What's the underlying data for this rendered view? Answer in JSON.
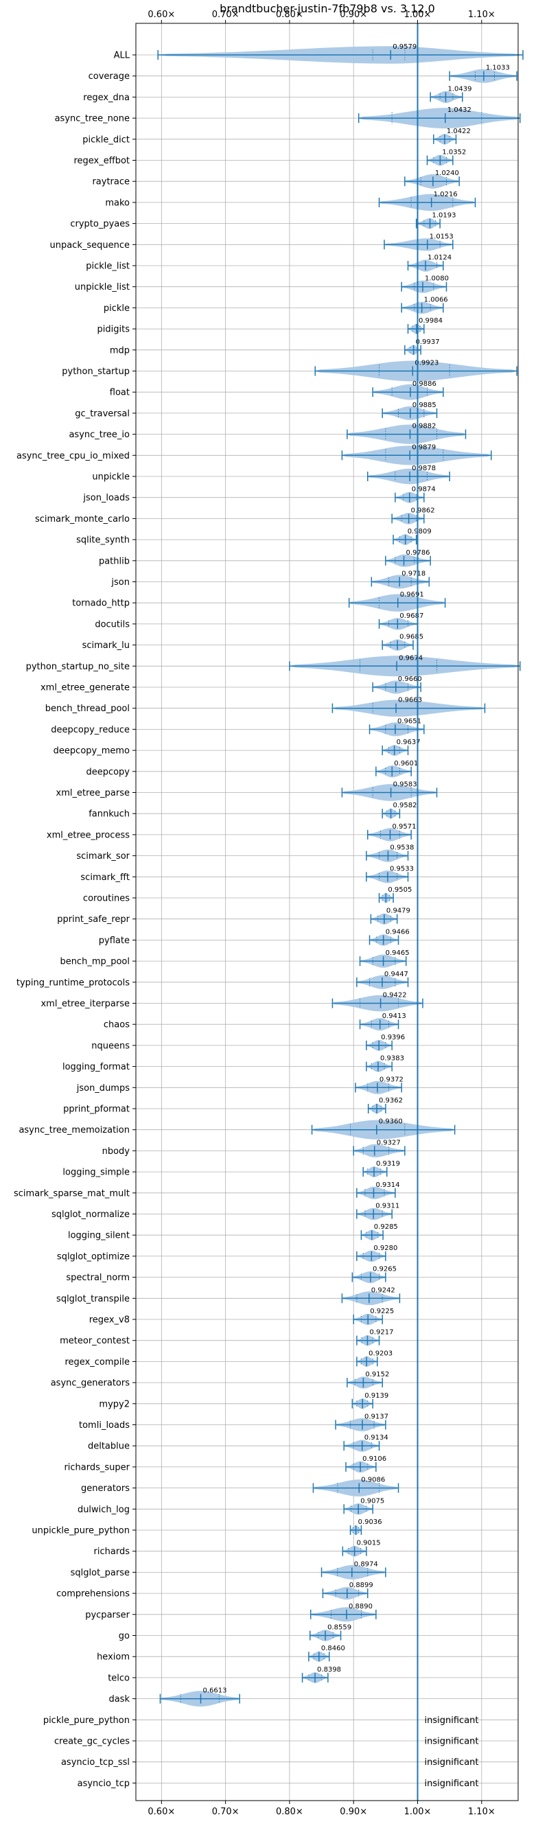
{
  "chart_data": {
    "type": "violin",
    "title": "brandtbucher-justin-7fb79b8 vs. 3.12.0",
    "xlabel": "",
    "ylabel": "",
    "xlim": [
      0.56,
      1.157
    ],
    "x_ticks": [
      0.6,
      0.7,
      0.8,
      0.9,
      1.0,
      1.1
    ],
    "x_tick_labels": [
      "0.60×",
      "0.70×",
      "0.80×",
      "0.90×",
      "1.00×",
      "1.10×"
    ],
    "reference_line": 1.0,
    "grid": true,
    "colors": {
      "violin": "#a9c8e6",
      "line": "#1f77b4",
      "grid": "#b0b0b0"
    },
    "insignificant_label": "insignificant",
    "benchmarks": [
      {
        "name": "ALL",
        "value": 0.9579,
        "label": "0.9579",
        "min": 0.5945,
        "max": 1.1645,
        "q1": 0.93,
        "q3": 0.98,
        "width": 0.075
      },
      {
        "name": "coverage",
        "value": 1.1033,
        "label": "1.1033",
        "min": 1.05,
        "max": 1.155,
        "q1": 1.09,
        "q3": 1.12,
        "width": 0.045
      },
      {
        "name": "regex_dna",
        "value": 1.0439,
        "label": "1.0439",
        "min": 1.02,
        "max": 1.07,
        "q1": 1.035,
        "q3": 1.055,
        "width": 0.03
      },
      {
        "name": "async_tree_none",
        "value": 1.0432,
        "label": "1.0432",
        "min": 0.908,
        "max": 1.16,
        "q1": 0.96,
        "q3": 1.1,
        "width": 0.105
      },
      {
        "name": "pickle_dict",
        "value": 1.0422,
        "label": "1.0422",
        "min": 1.025,
        "max": 1.06,
        "q1": 1.035,
        "q3": 1.05,
        "width": 0.02
      },
      {
        "name": "regex_effbot",
        "value": 1.0352,
        "label": "1.0352",
        "min": 1.015,
        "max": 1.055,
        "q1": 1.025,
        "q3": 1.045,
        "width": 0.02
      },
      {
        "name": "raytrace",
        "value": 1.024,
        "label": "1.0240",
        "min": 0.98,
        "max": 1.065,
        "q1": 1.005,
        "q3": 1.045,
        "width": 0.05
      },
      {
        "name": "mako",
        "value": 1.0216,
        "label": "1.0216",
        "min": 0.94,
        "max": 1.09,
        "q1": 0.99,
        "q3": 1.055,
        "width": 0.07
      },
      {
        "name": "crypto_pyaes",
        "value": 1.0193,
        "label": "1.0193",
        "min": 0.998,
        "max": 1.035,
        "q1": 1.01,
        "q3": 1.028,
        "width": 0.02
      },
      {
        "name": "unpack_sequence",
        "value": 1.0153,
        "label": "1.0153",
        "min": 0.948,
        "max": 1.055,
        "q1": 1.0,
        "q3": 1.035,
        "width": 0.035
      },
      {
        "name": "pickle_list",
        "value": 1.0124,
        "label": "1.0124",
        "min": 0.985,
        "max": 1.04,
        "q1": 1.0,
        "q3": 1.03,
        "width": 0.03
      },
      {
        "name": "unpickle_list",
        "value": 1.008,
        "label": "1.0080",
        "min": 0.975,
        "max": 1.045,
        "q1": 0.995,
        "q3": 1.025,
        "width": 0.035
      },
      {
        "name": "pickle",
        "value": 1.0066,
        "label": "1.0066",
        "min": 0.975,
        "max": 1.04,
        "q1": 0.995,
        "q3": 1.02,
        "width": 0.03
      },
      {
        "name": "pidigits",
        "value": 0.9984,
        "label": "0.9984",
        "min": 0.985,
        "max": 1.01,
        "q1": 0.992,
        "q3": 1.004,
        "width": 0.016
      },
      {
        "name": "mdp",
        "value": 0.9937,
        "label": "0.9937",
        "min": 0.98,
        "max": 1.005,
        "q1": 0.988,
        "q3": 1.0,
        "width": 0.014
      },
      {
        "name": "python_startup",
        "value": 0.9923,
        "label": "0.9923",
        "min": 0.84,
        "max": 1.155,
        "q1": 0.94,
        "q3": 1.05,
        "width": 0.11
      },
      {
        "name": "float",
        "value": 0.9886,
        "label": "0.9886",
        "min": 0.93,
        "max": 1.04,
        "q1": 0.96,
        "q3": 1.015,
        "width": 0.06
      },
      {
        "name": "gc_traversal",
        "value": 0.9885,
        "label": "0.9885",
        "min": 0.945,
        "max": 1.03,
        "q1": 0.97,
        "q3": 1.01,
        "width": 0.045
      },
      {
        "name": "async_tree_io",
        "value": 0.9882,
        "label": "0.9882",
        "min": 0.89,
        "max": 1.075,
        "q1": 0.95,
        "q3": 1.03,
        "width": 0.09
      },
      {
        "name": "async_tree_cpu_io_mixed",
        "value": 0.9879,
        "label": "0.9879",
        "min": 0.882,
        "max": 1.115,
        "q1": 0.95,
        "q3": 1.04,
        "width": 0.09
      },
      {
        "name": "unpickle",
        "value": 0.9878,
        "label": "0.9878",
        "min": 0.922,
        "max": 1.05,
        "q1": 0.965,
        "q3": 1.015,
        "width": 0.06
      },
      {
        "name": "json_loads",
        "value": 0.9874,
        "label": "0.9874",
        "min": 0.965,
        "max": 1.01,
        "q1": 0.978,
        "q3": 0.998,
        "width": 0.022
      },
      {
        "name": "scimark_monte_carlo",
        "value": 0.9862,
        "label": "0.9862",
        "min": 0.96,
        "max": 1.01,
        "q1": 0.975,
        "q3": 0.998,
        "width": 0.025
      },
      {
        "name": "sqlite_synth",
        "value": 0.9809,
        "label": "0.9809",
        "min": 0.962,
        "max": 0.998,
        "q1": 0.972,
        "q3": 0.99,
        "width": 0.02
      },
      {
        "name": "pathlib",
        "value": 0.9786,
        "label": "0.9786",
        "min": 0.95,
        "max": 1.02,
        "q1": 0.965,
        "q3": 0.995,
        "width": 0.035
      },
      {
        "name": "json",
        "value": 0.9718,
        "label": "0.9718",
        "min": 0.928,
        "max": 1.018,
        "q1": 0.955,
        "q3": 0.99,
        "width": 0.045
      },
      {
        "name": "tornado_http",
        "value": 0.9691,
        "label": "0.9691",
        "min": 0.893,
        "max": 1.043,
        "q1": 0.94,
        "q3": 1.0,
        "width": 0.075
      },
      {
        "name": "docutils",
        "value": 0.9687,
        "label": "0.9687",
        "min": 0.94,
        "max": 1.0,
        "q1": 0.955,
        "q3": 0.985,
        "width": 0.03
      },
      {
        "name": "scimark_lu",
        "value": 0.9685,
        "label": "0.9685",
        "min": 0.945,
        "max": 0.993,
        "q1": 0.958,
        "q3": 0.98,
        "width": 0.025
      },
      {
        "name": "python_startup_no_site",
        "value": 0.9674,
        "label": "0.9674",
        "min": 0.8,
        "max": 1.16,
        "q1": 0.91,
        "q3": 1.03,
        "width": 0.12
      },
      {
        "name": "xml_etree_generate",
        "value": 0.966,
        "label": "0.9660",
        "min": 0.93,
        "max": 1.005,
        "q1": 0.95,
        "q3": 0.985,
        "width": 0.04
      },
      {
        "name": "bench_thread_pool",
        "value": 0.9663,
        "label": "0.9663",
        "min": 0.867,
        "max": 1.105,
        "q1": 0.93,
        "q3": 1.0,
        "width": 0.07
      },
      {
        "name": "deepcopy_reduce",
        "value": 0.9651,
        "label": "0.9651",
        "min": 0.925,
        "max": 1.01,
        "q1": 0.95,
        "q3": 0.985,
        "width": 0.045
      },
      {
        "name": "deepcopy_memo",
        "value": 0.9637,
        "label": "0.9637",
        "min": 0.945,
        "max": 0.985,
        "q1": 0.955,
        "q3": 0.972,
        "width": 0.02
      },
      {
        "name": "deepcopy",
        "value": 0.9601,
        "label": "0.9601",
        "min": 0.935,
        "max": 0.99,
        "q1": 0.95,
        "q3": 0.972,
        "width": 0.03
      },
      {
        "name": "xml_etree_parse",
        "value": 0.9583,
        "label": "0.9583",
        "min": 0.882,
        "max": 1.03,
        "q1": 0.93,
        "q3": 0.99,
        "width": 0.07
      },
      {
        "name": "fannkuch",
        "value": 0.9582,
        "label": "0.9582",
        "min": 0.945,
        "max": 0.972,
        "q1": 0.952,
        "q3": 0.965,
        "width": 0.015
      },
      {
        "name": "xml_etree_process",
        "value": 0.9571,
        "label": "0.9571",
        "min": 0.922,
        "max": 0.99,
        "q1": 0.942,
        "q3": 0.972,
        "width": 0.04
      },
      {
        "name": "scimark_sor",
        "value": 0.9538,
        "label": "0.9538",
        "min": 0.92,
        "max": 0.985,
        "q1": 0.94,
        "q3": 0.968,
        "width": 0.035
      },
      {
        "name": "scimark_fft",
        "value": 0.9533,
        "label": "0.9533",
        "min": 0.92,
        "max": 0.985,
        "q1": 0.94,
        "q3": 0.968,
        "width": 0.035
      },
      {
        "name": "coroutines",
        "value": 0.9505,
        "label": "0.9505",
        "min": 0.94,
        "max": 0.962,
        "q1": 0.945,
        "q3": 0.956,
        "width": 0.012
      },
      {
        "name": "pprint_safe_repr",
        "value": 0.9479,
        "label": "0.9479",
        "min": 0.927,
        "max": 0.968,
        "q1": 0.938,
        "q3": 0.958,
        "width": 0.022
      },
      {
        "name": "pyflate",
        "value": 0.9466,
        "label": "0.9466",
        "min": 0.925,
        "max": 0.97,
        "q1": 0.936,
        "q3": 0.958,
        "width": 0.025
      },
      {
        "name": "bench_mp_pool",
        "value": 0.9465,
        "label": "0.9465",
        "min": 0.91,
        "max": 0.982,
        "q1": 0.93,
        "q3": 0.965,
        "width": 0.04
      },
      {
        "name": "typing_runtime_protocols",
        "value": 0.9447,
        "label": "0.9447",
        "min": 0.905,
        "max": 0.985,
        "q1": 0.925,
        "q3": 0.965,
        "width": 0.045
      },
      {
        "name": "xml_etree_iterparse",
        "value": 0.9422,
        "label": "0.9422",
        "min": 0.867,
        "max": 1.008,
        "q1": 0.91,
        "q3": 0.97,
        "width": 0.065
      },
      {
        "name": "chaos",
        "value": 0.9413,
        "label": "0.9413",
        "min": 0.91,
        "max": 0.97,
        "q1": 0.928,
        "q3": 0.955,
        "width": 0.035
      },
      {
        "name": "nqueens",
        "value": 0.9396,
        "label": "0.9396",
        "min": 0.92,
        "max": 0.96,
        "q1": 0.93,
        "q3": 0.95,
        "width": 0.022
      },
      {
        "name": "logging_format",
        "value": 0.9383,
        "label": "0.9383",
        "min": 0.92,
        "max": 0.96,
        "q1": 0.928,
        "q3": 0.948,
        "width": 0.022
      },
      {
        "name": "json_dumps",
        "value": 0.9372,
        "label": "0.9372",
        "min": 0.903,
        "max": 0.975,
        "q1": 0.922,
        "q3": 0.955,
        "width": 0.04
      },
      {
        "name": "pprint_pformat",
        "value": 0.9362,
        "label": "0.9362",
        "min": 0.923,
        "max": 0.95,
        "q1": 0.93,
        "q3": 0.943,
        "width": 0.014
      },
      {
        "name": "async_tree_memoization",
        "value": 0.936,
        "label": "0.9360",
        "min": 0.835,
        "max": 1.058,
        "q1": 0.895,
        "q3": 0.98,
        "width": 0.09
      },
      {
        "name": "nbody",
        "value": 0.9327,
        "label": "0.9327",
        "min": 0.9,
        "max": 0.98,
        "q1": 0.915,
        "q3": 0.955,
        "width": 0.04
      },
      {
        "name": "logging_simple",
        "value": 0.9319,
        "label": "0.9319",
        "min": 0.915,
        "max": 0.952,
        "q1": 0.922,
        "q3": 0.942,
        "width": 0.02
      },
      {
        "name": "scimark_sparse_mat_mult",
        "value": 0.9314,
        "label": "0.9314",
        "min": 0.905,
        "max": 0.965,
        "q1": 0.918,
        "q3": 0.948,
        "width": 0.035
      },
      {
        "name": "sqlglot_normalize",
        "value": 0.9311,
        "label": "0.9311",
        "min": 0.905,
        "max": 0.96,
        "q1": 0.918,
        "q3": 0.945,
        "width": 0.03
      },
      {
        "name": "logging_silent",
        "value": 0.9285,
        "label": "0.9285",
        "min": 0.912,
        "max": 0.946,
        "q1": 0.92,
        "q3": 0.938,
        "width": 0.018
      },
      {
        "name": "sqlglot_optimize",
        "value": 0.928,
        "label": "0.9280",
        "min": 0.905,
        "max": 0.95,
        "q1": 0.915,
        "q3": 0.94,
        "width": 0.025
      },
      {
        "name": "spectral_norm",
        "value": 0.9265,
        "label": "0.9265",
        "min": 0.898,
        "max": 0.95,
        "q1": 0.912,
        "q3": 0.94,
        "width": 0.03
      },
      {
        "name": "sqlglot_transpile",
        "value": 0.9242,
        "label": "0.9242",
        "min": 0.882,
        "max": 0.972,
        "q1": 0.905,
        "q3": 0.945,
        "width": 0.045
      },
      {
        "name": "regex_v8",
        "value": 0.9225,
        "label": "0.9225",
        "min": 0.9,
        "max": 0.945,
        "q1": 0.912,
        "q3": 0.935,
        "width": 0.025
      },
      {
        "name": "meteor_contest",
        "value": 0.9217,
        "label": "0.9217",
        "min": 0.905,
        "max": 0.94,
        "q1": 0.913,
        "q3": 0.93,
        "width": 0.018
      },
      {
        "name": "regex_compile",
        "value": 0.9203,
        "label": "0.9203",
        "min": 0.905,
        "max": 0.937,
        "q1": 0.912,
        "q3": 0.93,
        "width": 0.017
      },
      {
        "name": "async_generators",
        "value": 0.9152,
        "label": "0.9152",
        "min": 0.89,
        "max": 0.945,
        "q1": 0.902,
        "q3": 0.93,
        "width": 0.03
      },
      {
        "name": "mypy2",
        "value": 0.9139,
        "label": "0.9139",
        "min": 0.898,
        "max": 0.93,
        "q1": 0.905,
        "q3": 0.922,
        "width": 0.017
      },
      {
        "name": "tomli_loads",
        "value": 0.9137,
        "label": "0.9137",
        "min": 0.872,
        "max": 0.95,
        "q1": 0.895,
        "q3": 0.932,
        "width": 0.04
      },
      {
        "name": "deltablue",
        "value": 0.9134,
        "label": "0.9134",
        "min": 0.885,
        "max": 0.94,
        "q1": 0.9,
        "q3": 0.928,
        "width": 0.03
      },
      {
        "name": "richards_super",
        "value": 0.9106,
        "label": "0.9106",
        "min": 0.888,
        "max": 0.935,
        "q1": 0.9,
        "q3": 0.922,
        "width": 0.025
      },
      {
        "name": "generators",
        "value": 0.9086,
        "label": "0.9086",
        "min": 0.837,
        "max": 0.97,
        "q1": 0.875,
        "q3": 0.94,
        "width": 0.07
      },
      {
        "name": "dulwich_log",
        "value": 0.9075,
        "label": "0.9075",
        "min": 0.885,
        "max": 0.93,
        "q1": 0.896,
        "q3": 0.92,
        "width": 0.025
      },
      {
        "name": "unpickle_pure_python",
        "value": 0.9036,
        "label": "0.9036",
        "min": 0.895,
        "max": 0.912,
        "q1": 0.899,
        "q3": 0.908,
        "width": 0.01
      },
      {
        "name": "richards",
        "value": 0.9015,
        "label": "0.9015",
        "min": 0.883,
        "max": 0.92,
        "q1": 0.892,
        "q3": 0.911,
        "width": 0.02
      },
      {
        "name": "sqlglot_parse",
        "value": 0.8974,
        "label": "0.8974",
        "min": 0.85,
        "max": 0.95,
        "q1": 0.875,
        "q3": 0.922,
        "width": 0.05
      },
      {
        "name": "comprehensions",
        "value": 0.8899,
        "label": "0.8899",
        "min": 0.852,
        "max": 0.922,
        "q1": 0.872,
        "q3": 0.908,
        "width": 0.035
      },
      {
        "name": "pycparser",
        "value": 0.889,
        "label": "0.8890",
        "min": 0.833,
        "max": 0.935,
        "q1": 0.865,
        "q3": 0.912,
        "width": 0.05
      },
      {
        "name": "go",
        "value": 0.8559,
        "label": "0.8559",
        "min": 0.832,
        "max": 0.88,
        "q1": 0.845,
        "q3": 0.868,
        "width": 0.025
      },
      {
        "name": "hexiom",
        "value": 0.846,
        "label": "0.8460",
        "min": 0.83,
        "max": 0.862,
        "q1": 0.838,
        "q3": 0.854,
        "width": 0.017
      },
      {
        "name": "telco",
        "value": 0.8398,
        "label": "0.8398",
        "min": 0.82,
        "max": 0.86,
        "q1": 0.83,
        "q3": 0.85,
        "width": 0.02
      },
      {
        "name": "dask",
        "value": 0.6613,
        "label": "0.6613",
        "min": 0.598,
        "max": 0.722,
        "q1": 0.63,
        "q3": 0.69,
        "width": 0.06
      },
      {
        "name": "pickle_pure_python",
        "value": null,
        "label": null
      },
      {
        "name": "create_gc_cycles",
        "value": null,
        "label": null
      },
      {
        "name": "asyncio_tcp_ssl",
        "value": null,
        "label": null
      },
      {
        "name": "asyncio_tcp",
        "value": null,
        "label": null
      }
    ]
  }
}
